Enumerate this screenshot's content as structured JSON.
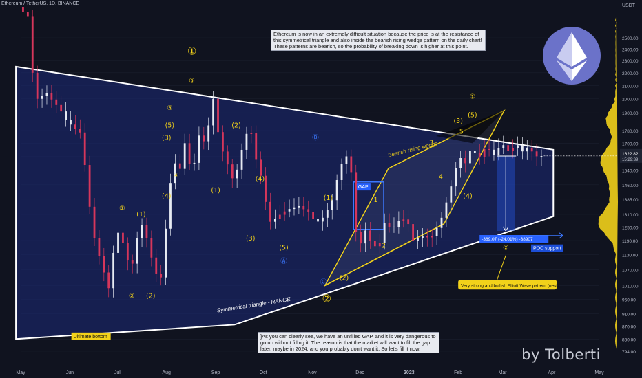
{
  "header": {
    "symbol": "Ethereum / TetherUS, 1D, BINANCE"
  },
  "currency": "USDT",
  "colors": {
    "background": "#10131f",
    "triangle_fill": "#1b2a78",
    "up_candle": "#e6eaf2",
    "down_candle": "#d6365b",
    "label_yellow": "#f2d21a",
    "label_blue": "#2962ff",
    "volume_profile": "#f2d21a"
  },
  "chart_data": {
    "type": "candlestick",
    "x_axis": {
      "tick_labels": [
        "May",
        "Jun",
        "Jul",
        "Aug",
        "Sep",
        "Oct",
        "Nov",
        "Dec",
        "2023",
        "Feb",
        "Mar",
        "Apr",
        "May"
      ]
    },
    "y_axis": {
      "ticks": [
        794,
        830,
        870,
        910,
        960,
        1010,
        1070,
        1130,
        1190,
        1250,
        1310,
        1385,
        1460,
        1540,
        1620,
        1700,
        1780,
        1900,
        2000,
        2100,
        2200,
        2300,
        2400,
        2500
      ],
      "tick_labels": [
        "794.00",
        "830.00",
        "870.00",
        "910.00",
        "960.00",
        "1010.00",
        "1070.00",
        "1130.00",
        "1190.00",
        "1250.00",
        "1310.00",
        "1385.00",
        "1460.00",
        "1540.00",
        "1620.00",
        "1700.00",
        "1780.00",
        "1900.00",
        "2000.00",
        "2100.00",
        "2200.00",
        "2300.00",
        "2400.00",
        "2500.00"
      ],
      "scale": "log",
      "range": [
        780,
        2800
      ]
    },
    "price_path": [
      {
        "day": 0,
        "price": 2800
      },
      {
        "day": 6,
        "price": 2700
      },
      {
        "day": 9,
        "price": 2200
      },
      {
        "day": 12,
        "price": 2000
      },
      {
        "day": 18,
        "price": 2040
      },
      {
        "day": 22,
        "price": 1980
      },
      {
        "day": 26,
        "price": 1930
      },
      {
        "day": 30,
        "price": 1850
      },
      {
        "day": 35,
        "price": 1800
      },
      {
        "day": 40,
        "price": 1760
      },
      {
        "day": 44,
        "price": 1400
      },
      {
        "day": 48,
        "price": 1200
      },
      {
        "day": 52,
        "price": 1100
      },
      {
        "day": 57,
        "price": 1000
      },
      {
        "day": 62,
        "price": 1240
      },
      {
        "day": 66,
        "price": 1180
      },
      {
        "day": 71,
        "price": 1060
      },
      {
        "day": 77,
        "price": 1280
      },
      {
        "day": 82,
        "price": 1180
      },
      {
        "day": 86,
        "price": 1060
      },
      {
        "day": 90,
        "price": 1040
      },
      {
        "day": 95,
        "price": 1400
      },
      {
        "day": 98,
        "price": 1620
      },
      {
        "day": 101,
        "price": 1500
      },
      {
        "day": 105,
        "price": 1700
      },
      {
        "day": 110,
        "price": 1500
      },
      {
        "day": 113,
        "price": 1760
      },
      {
        "day": 118,
        "price": 1700
      },
      {
        "day": 123,
        "price": 2000
      },
      {
        "day": 127,
        "price": 1700
      },
      {
        "day": 131,
        "price": 1600
      },
      {
        "day": 136,
        "price": 1470
      },
      {
        "day": 142,
        "price": 1700
      },
      {
        "day": 146,
        "price": 1820
      },
      {
        "day": 150,
        "price": 1600
      },
      {
        "day": 154,
        "price": 1480
      },
      {
        "day": 158,
        "price": 1270
      },
      {
        "day": 162,
        "price": 1290
      },
      {
        "day": 167,
        "price": 1320
      },
      {
        "day": 172,
        "price": 1340
      },
      {
        "day": 177,
        "price": 1350
      },
      {
        "day": 183,
        "price": 1320
      },
      {
        "day": 188,
        "price": 1270
      },
      {
        "day": 193,
        "price": 1300
      },
      {
        "day": 198,
        "price": 1380
      },
      {
        "day": 203,
        "price": 1560
      },
      {
        "day": 207,
        "price": 1620
      },
      {
        "day": 211,
        "price": 1500
      },
      {
        "day": 214,
        "price": 1110
      },
      {
        "day": 218,
        "price": 1250
      },
      {
        "day": 222,
        "price": 1190
      },
      {
        "day": 227,
        "price": 1150
      },
      {
        "day": 231,
        "price": 1270
      },
      {
        "day": 236,
        "price": 1240
      },
      {
        "day": 240,
        "price": 1280
      },
      {
        "day": 245,
        "price": 1290
      },
      {
        "day": 249,
        "price": 1190
      },
      {
        "day": 255,
        "price": 1210
      },
      {
        "day": 260,
        "price": 1200
      },
      {
        "day": 266,
        "price": 1270
      },
      {
        "day": 272,
        "price": 1420
      },
      {
        "day": 278,
        "price": 1620
      },
      {
        "day": 282,
        "price": 1580
      },
      {
        "day": 286,
        "price": 1680
      },
      {
        "day": 290,
        "price": 1600
      },
      {
        "day": 295,
        "price": 1680
      },
      {
        "day": 300,
        "price": 1630
      },
      {
        "day": 305,
        "price": 1700
      },
      {
        "day": 310,
        "price": 1640
      },
      {
        "day": 314,
        "price": 1700
      },
      {
        "day": 318,
        "price": 1650
      },
      {
        "day": 322,
        "price": 1680
      },
      {
        "day": 326,
        "price": 1620
      },
      {
        "day": 330,
        "price": 1622
      }
    ],
    "current_price": {
      "label": "1622.82",
      "countdown": "15:29:39",
      "value": 1622.82
    },
    "measurement": {
      "label": "-389.07 (-24.01%) -38907",
      "from_price": 1622,
      "to_price": 1233
    },
    "wave_labels": [
      {
        "text": "①",
        "day": 108,
        "price": 2350,
        "color": "yellow",
        "size": "large"
      },
      {
        "text": "⑤",
        "day": 108,
        "price": 2120,
        "color": "yellow"
      },
      {
        "text": "③",
        "day": 94,
        "price": 1920,
        "color": "yellow"
      },
      {
        "text": "(3)",
        "day": 92,
        "price": 1720,
        "color": "yellow"
      },
      {
        "text": "(5)",
        "day": 94,
        "price": 1800,
        "color": "yellow"
      },
      {
        "text": "④",
        "day": 98,
        "price": 1500,
        "color": "yellow"
      },
      {
        "text": "(4)",
        "day": 92,
        "price": 1390,
        "color": "yellow"
      },
      {
        "text": "①",
        "day": 64,
        "price": 1330,
        "color": "yellow"
      },
      {
        "text": "(1)",
        "day": 76,
        "price": 1300,
        "color": "yellow"
      },
      {
        "text": "②",
        "day": 70,
        "price": 965,
        "color": "yellow"
      },
      {
        "text": "(2)",
        "day": 82,
        "price": 965,
        "color": "yellow"
      },
      {
        "text": "(2)",
        "day": 136,
        "price": 1800,
        "color": "yellow"
      },
      {
        "text": "(1)",
        "day": 123,
        "price": 1420,
        "color": "yellow"
      },
      {
        "text": "(4)",
        "day": 151,
        "price": 1480,
        "color": "yellow"
      },
      {
        "text": "(3)",
        "day": 145,
        "price": 1190,
        "color": "yellow"
      },
      {
        "text": "(5)",
        "day": 166,
        "price": 1150,
        "color": "yellow"
      },
      {
        "text": "Ⓑ",
        "day": 186,
        "price": 1720,
        "color": "blue"
      },
      {
        "text": "Ⓐ",
        "day": 166,
        "price": 1095,
        "color": "blue"
      },
      {
        "text": "Ⓒ",
        "day": 191,
        "price": 1015,
        "color": "blue"
      },
      {
        "text": "(1)",
        "day": 194,
        "price": 1380,
        "color": "yellow"
      },
      {
        "text": "(2)",
        "day": 204,
        "price": 1030,
        "color": "yellow"
      },
      {
        "text": "②",
        "day": 193,
        "price": 950,
        "color": "yellow",
        "size": "large"
      },
      {
        "text": "1",
        "day": 224,
        "price": 1370,
        "color": "yellow"
      },
      {
        "text": "2",
        "day": 229,
        "price": 1160,
        "color": "yellow"
      },
      {
        "text": "3",
        "day": 259,
        "price": 1690,
        "color": "yellow"
      },
      {
        "text": "4",
        "day": 265,
        "price": 1490,
        "color": "yellow"
      },
      {
        "text": "5",
        "day": 278,
        "price": 1760,
        "color": "yellow"
      },
      {
        "text": "(3)",
        "day": 276,
        "price": 1830,
        "color": "yellow"
      },
      {
        "text": "(5)",
        "day": 285,
        "price": 1870,
        "color": "yellow"
      },
      {
        "text": "①",
        "day": 285,
        "price": 2000,
        "color": "yellow"
      },
      {
        "text": "(4)",
        "day": 282,
        "price": 1390,
        "color": "yellow"
      },
      {
        "text": "②",
        "day": 306,
        "price": 1150,
        "color": "yellow"
      }
    ],
    "pattern_labels": {
      "triangle": "Symmetrical triangle - RANGE",
      "wedge": "Bearish rising wedge",
      "gap": "GAP",
      "bottom": "Ultimate bottom",
      "poc": "POC support",
      "elliott": "Very strong and bullish Elliott Wave pattern (nest)"
    }
  },
  "notes": {
    "top": "Ethereum is now in an extremely difficult situation because the price is at the resistance of this symmetrical triangle and also inside the bearish rising wedge pattern on the daily chart! These patterns are bearish, so the probability of breaking down is higher at this point.",
    "bottom": "]As you can clearly see, we have an unfilled GAP, and it is very dangerous to go up without filling it. The reason is that the market will want to fill the gap later, maybe in 2024, and you probably don't want it. So let's fill it now."
  },
  "brand": "by Tolberti"
}
